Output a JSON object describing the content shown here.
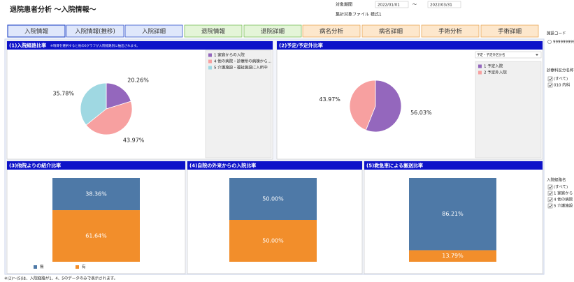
{
  "header": {
    "title": "退院患者分析 ～入院情報～",
    "period_label": "対象期間",
    "date_from": "2022/01/01",
    "separator": "～",
    "date_to": "2022/03/31",
    "file_label": "集計対象ファイル 様式1"
  },
  "tabs": [
    "入院情報",
    "入院情報(推移)",
    "入院詳細",
    "退院情報",
    "退院詳細",
    "病名分析",
    "病名詳細",
    "手術分析",
    "手術詳細"
  ],
  "sidebar": {
    "facility_label": "施設コード",
    "facility_value": "999999999",
    "dept_label": "診療科区分名称",
    "dept_items": [
      "(すべて)",
      "010 内科"
    ],
    "route_label": "入院経路名",
    "route_items": [
      "(すべて)",
      "1 家庭から",
      "4 他の病院",
      "5 介護施設"
    ]
  },
  "footer": "※(2)～(5)は、入院経路が1、4、5のデータのみで表示されます。",
  "chart_data": [
    {
      "type": "pie",
      "title": "(1)入院経路比率",
      "note": "※項目を選択すると他の6グラフが入院経路別に抽出されます。",
      "categories": [
        "1 家庭からの入院",
        "4 他の病院・診療所の病棟から...",
        "5 介護施設・福祉施設に入所中"
      ],
      "values": [
        20.26,
        43.97,
        35.78
      ],
      "value_labels": [
        "20.26%",
        "43.97%",
        "35.78%"
      ],
      "colors": [
        "#9467bd",
        "#f7a0a0",
        "#9fd8e2"
      ]
    },
    {
      "type": "pie",
      "title": "(2)予定/予定外比率",
      "dropdown": "予定・予定外区分名",
      "categories": [
        "1 予定入院",
        "2 予定外入院"
      ],
      "values": [
        56.03,
        43.97
      ],
      "value_labels": [
        "56.03%",
        "43.97%"
      ],
      "colors": [
        "#9467bd",
        "#f7a0a0"
      ]
    },
    {
      "type": "stacked_bar",
      "title": "(3)他院よりの紹介比率",
      "categories": [
        null
      ],
      "series": [
        {
          "name": "無",
          "color": "#4e79a7",
          "values": [
            38.36
          ],
          "value_labels": [
            "38.36%"
          ]
        },
        {
          "name": "有",
          "color": "#f28e2b",
          "values": [
            61.64
          ],
          "value_labels": [
            "61.64%"
          ]
        }
      ]
    },
    {
      "type": "stacked_bar",
      "title": "(4)自院の外来からの入院比率",
      "categories": [
        null
      ],
      "series": [
        {
          "color": "#4e79a7",
          "values": [
            50.0
          ],
          "value_labels": [
            "50.00%"
          ]
        },
        {
          "color": "#f28e2b",
          "values": [
            50.0
          ],
          "value_labels": [
            "50.00%"
          ]
        }
      ]
    },
    {
      "type": "stacked_bar",
      "title": "(5)救急車による搬送比率",
      "categories": [
        null
      ],
      "series": [
        {
          "color": "#4e79a7",
          "values": [
            86.21
          ],
          "value_labels": [
            "86.21%"
          ]
        },
        {
          "color": "#f28e2b",
          "values": [
            13.79
          ],
          "value_labels": [
            "13.79%"
          ]
        }
      ]
    }
  ]
}
